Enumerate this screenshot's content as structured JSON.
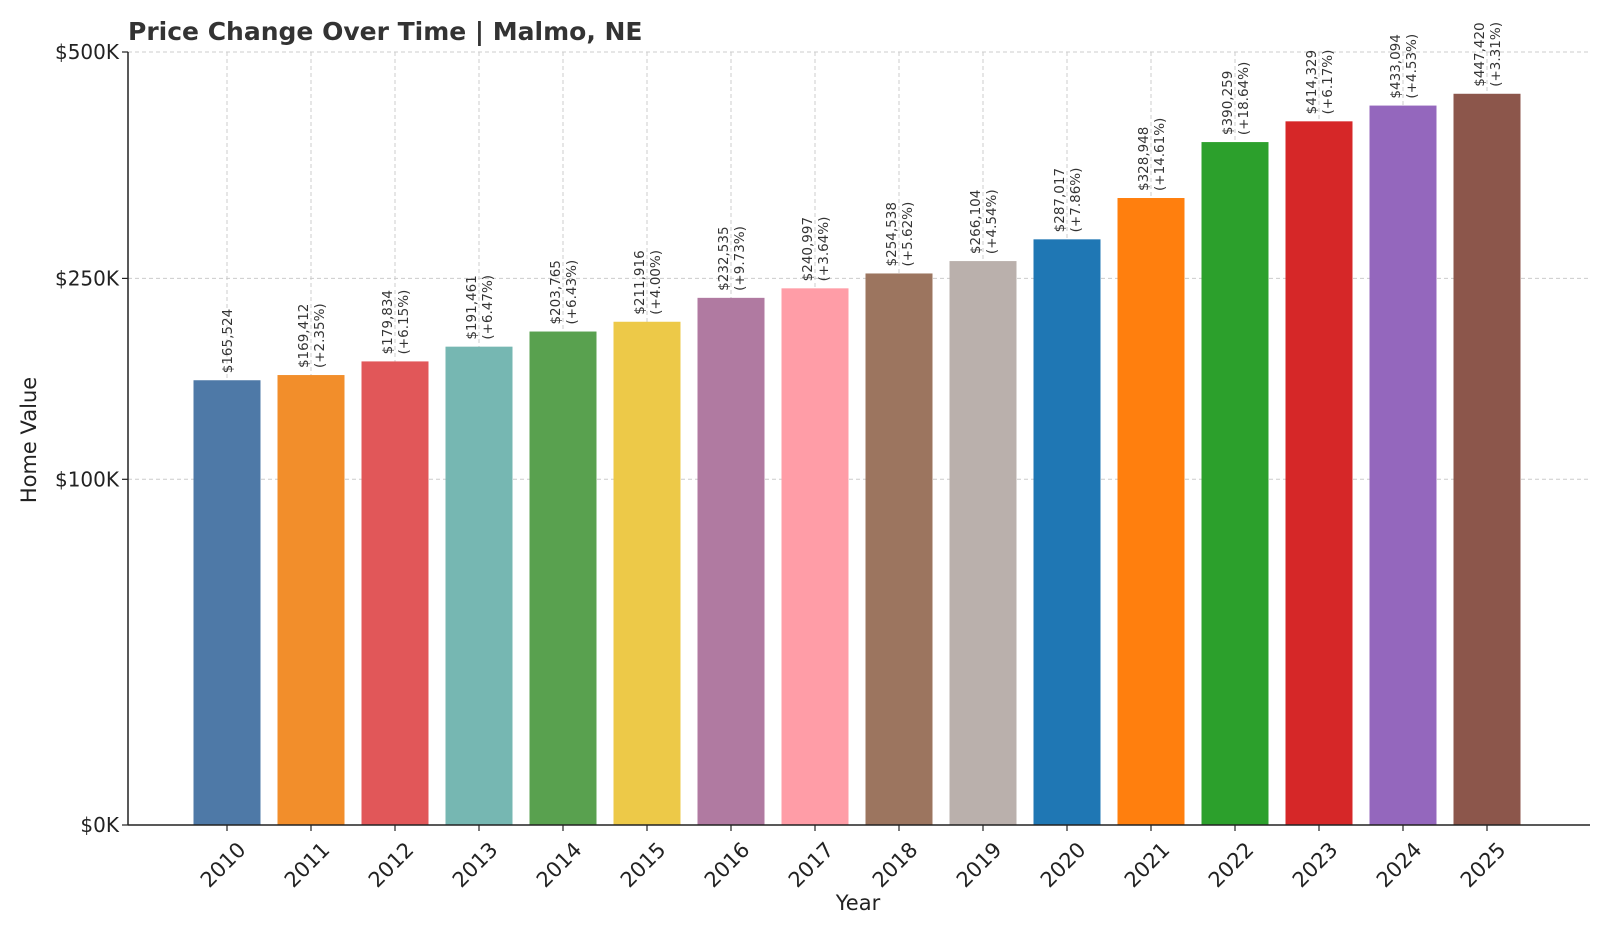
{
  "chart_data": {
    "type": "bar",
    "title": "Price Change Over Time | Malmo, NE",
    "xlabel": "Year",
    "ylabel": "Home Value",
    "scale": "sqrt",
    "ylim": [
      0,
      500000
    ],
    "yticks": [
      {
        "value": 0,
        "label": "$0K"
      },
      {
        "value": 100000,
        "label": "$100K"
      },
      {
        "value": 250000,
        "label": "$250K"
      },
      {
        "value": 500000,
        "label": "$500K"
      }
    ],
    "grid": true,
    "categories": [
      "2010",
      "2011",
      "2012",
      "2013",
      "2014",
      "2015",
      "2016",
      "2017",
      "2018",
      "2019",
      "2020",
      "2021",
      "2022",
      "2023",
      "2024",
      "2025"
    ],
    "values": [
      165524,
      169412,
      179834,
      191461,
      203765,
      211916,
      232535,
      240997,
      254538,
      266104,
      287017,
      328948,
      390259,
      414329,
      433094,
      447420
    ],
    "value_labels": [
      "$165,524",
      "$169,412",
      "$179,834",
      "$191,461",
      "$203,765",
      "$211,916",
      "$232,535",
      "$240,997",
      "$254,538",
      "$266,104",
      "$287,017",
      "$328,948",
      "$390,259",
      "$414,329",
      "$433,094",
      "$447,420"
    ],
    "change_labels": [
      "",
      "(+2.35%)",
      "(+6.15%)",
      "(+6.47%)",
      "(+6.43%)",
      "(+4.00%)",
      "(+9.73%)",
      "(+3.64%)",
      "(+5.62%)",
      "(+4.54%)",
      "(+7.86%)",
      "(+14.61%)",
      "(+18.64%)",
      "(+6.17%)",
      "(+4.53%)",
      "(+3.31%)"
    ],
    "colors": [
      "#4e79a7",
      "#f28e2b",
      "#e15759",
      "#76b7b2",
      "#59a14f",
      "#edc948",
      "#b07aa1",
      "#ff9da7",
      "#9c755f",
      "#bab0ac",
      "#1f77b4",
      "#ff7f0e",
      "#2ca02c",
      "#d62728",
      "#9467bd",
      "#8c564b"
    ]
  }
}
